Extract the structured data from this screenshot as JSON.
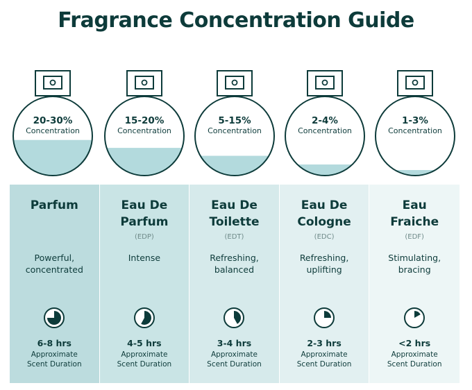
{
  "title": "Fragrance Concentration Guide",
  "colors": {
    "col_backgrounds": [
      "#bcdcde",
      "#c9e4e5",
      "#d6eaeb",
      "#e2f0f1",
      "#edf6f6"
    ],
    "liquid": "#b3dadd",
    "outline": "#0d3b3a"
  },
  "types": [
    {
      "percent": "20-30%",
      "concentration_label": "Concentration",
      "fill_fraction": 0.45,
      "name_lines": [
        "Parfum"
      ],
      "abbr": "",
      "desc_lines": [
        "Powerful,",
        "concentrated"
      ],
      "clock_fraction": 0.75,
      "clock_icon": "clock-75-icon",
      "hours": "6-8 hrs",
      "approx_lines": [
        "Approximate",
        "Scent Duration"
      ]
    },
    {
      "percent": "15-20%",
      "concentration_label": "Concentration",
      "fill_fraction": 0.35,
      "name_lines": [
        "Eau De",
        "Parfum"
      ],
      "abbr": "(EDP)",
      "desc_lines": [
        "Intense"
      ],
      "clock_fraction": 0.58,
      "clock_icon": "clock-58-icon",
      "hours": "4-5 hrs",
      "approx_lines": [
        "Approximate",
        "Scent Duration"
      ]
    },
    {
      "percent": "5-15%",
      "concentration_label": "Concentration",
      "fill_fraction": 0.25,
      "name_lines": [
        "Eau De",
        "Toilette"
      ],
      "abbr": "(EDT)",
      "desc_lines": [
        "Refreshing,",
        "balanced"
      ],
      "clock_fraction": 0.42,
      "clock_icon": "clock-42-icon",
      "hours": "3-4 hrs",
      "approx_lines": [
        "Approximate",
        "Scent Duration"
      ]
    },
    {
      "percent": "2-4%",
      "concentration_label": "Concentration",
      "fill_fraction": 0.14,
      "name_lines": [
        "Eau De",
        "Cologne"
      ],
      "abbr": "(EDC)",
      "desc_lines": [
        "Refreshing,",
        "uplifting"
      ],
      "clock_fraction": 0.25,
      "clock_icon": "clock-25-icon",
      "hours": "2-3 hrs",
      "approx_lines": [
        "Approximate",
        "Scent Duration"
      ]
    },
    {
      "percent": "1-3%",
      "concentration_label": "Concentration",
      "fill_fraction": 0.07,
      "name_lines": [
        "Eau",
        "Fraiche"
      ],
      "abbr": "(EDF)",
      "desc_lines": [
        "Stimulating,",
        "bracing"
      ],
      "clock_fraction": 0.17,
      "clock_icon": "clock-17-icon",
      "hours": "<2 hrs",
      "approx_lines": [
        "Approximate",
        "Scent Duration"
      ]
    }
  ]
}
